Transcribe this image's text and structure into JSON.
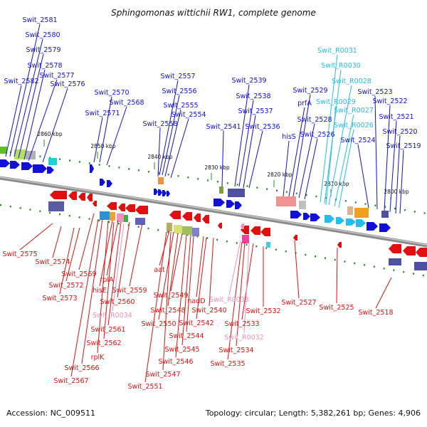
{
  "title": "Sphingomonas wittichii RW1, complete genome",
  "accession": "Accession: NC_009511",
  "topology": "Topology: circular; Length: 5,382,261 bp; Genes: 4,906",
  "colors": {
    "forward": "#1010d8",
    "reverse": "#e01010",
    "rna_forward": "#22bfe8",
    "rna_reverse": "#f090c0",
    "backbone": "#888888",
    "tick": "#2a8a2a"
  },
  "ticks": [
    "2860 kbp",
    "2850 kbp",
    "2840 kbp",
    "2830 kbp",
    "2820 kbp",
    "2810 kbp",
    "2800 kbp"
  ],
  "top_labels": [
    "Swit_2581",
    "Swit_2580",
    "Swit_2579",
    "Swit_2578",
    "Swit_2577",
    "Swit_2582",
    "Swit_2576",
    "Swit_2570",
    "Swit_2568",
    "Swit_2571",
    "Swit_2557",
    "Swit_2556",
    "Swit_2555",
    "Swit_2554",
    "Swit_2558",
    "Swit_2539",
    "Swit_2538",
    "Swit_2537",
    "Swit_2541",
    "Swit_2536",
    "Swit_2529",
    "prfA",
    "Swit_2528",
    "hisS",
    "Swit_2526",
    "Swit_R0031",
    "Swit_R0030",
    "Swit_R0028",
    "Swit_R0029",
    "Swit_R0027",
    "Swit_R0026",
    "Swit_2523",
    "Swit_2522",
    "Swit_2521",
    "Swit_2520",
    "Swit_2524",
    "Swit_2519"
  ],
  "bottom_labels": [
    "Swit_2575",
    "Swit_2574",
    "Swit_2569",
    "Swit_2572",
    "Swit_2573",
    "rplA",
    "hisE",
    "Swit_2560",
    "Swit_2559",
    "Swit_R0034",
    "Swit_2561",
    "Swit_2562",
    "rplK",
    "Swit_2566",
    "Swit_2567",
    "aat",
    "Swit_2549",
    "Swit_2548",
    "Swit_2550",
    "Swit_2551",
    "Swit_2547",
    "Swit_2546",
    "Swit_2545",
    "Swit_2544",
    "nadD",
    "Swit_2540",
    "Swit_2542",
    "Swit_R0033",
    "Swit_2532",
    "Swit_2533",
    "Swit_R0032",
    "Swit_2534",
    "Swit_2535",
    "Swit_2527",
    "Swit_2525",
    "Swit_2518"
  ]
}
